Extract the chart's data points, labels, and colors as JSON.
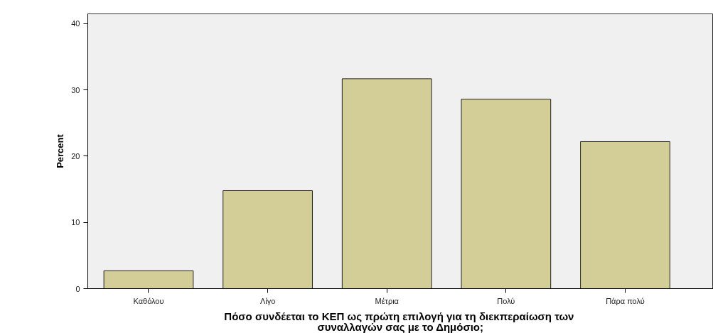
{
  "chart_data": {
    "type": "bar",
    "xlabel": "Πόσο συνδέεται το ΚΕΠ ως πρώτη επιλογή  για τη διεκπεραίωση των\nσυναλλαγών σας με το Δημόσιο;",
    "ylabel": "Percent",
    "categories": [
      "Καθόλου",
      "Λίγο",
      "Μέτρια",
      "Πολύ",
      "Πάρα πολύ"
    ],
    "values": [
      2.7,
      14.8,
      31.7,
      28.6,
      22.2
    ],
    "color": "#d3ce97",
    "ylim": [
      0,
      41.5
    ],
    "yticks": [
      0,
      10,
      20,
      30,
      40
    ],
    "grid": false
  }
}
